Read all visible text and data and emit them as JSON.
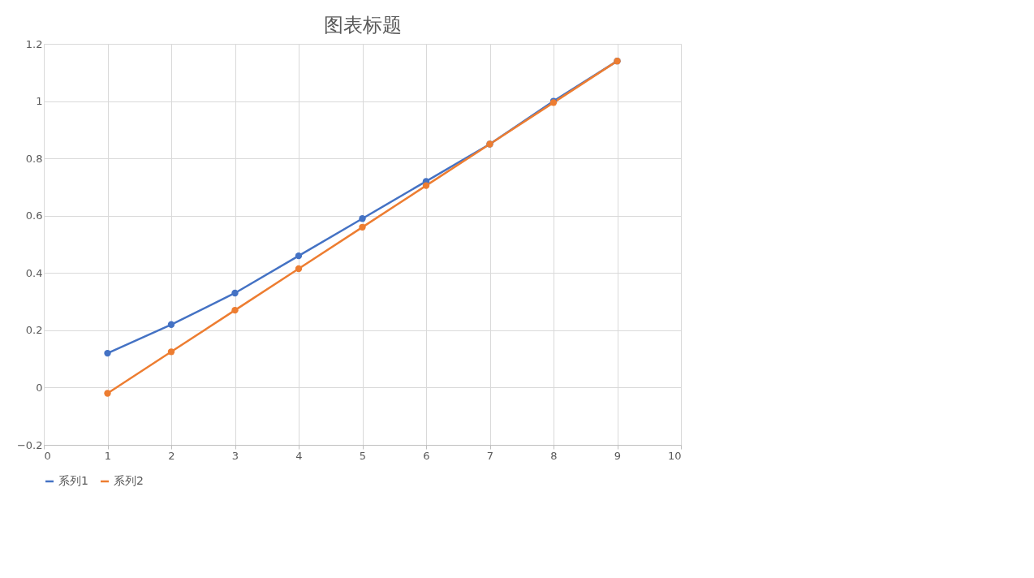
{
  "chart_data": {
    "type": "line",
    "title": "图表标题",
    "x": [
      1,
      2,
      3,
      4,
      5,
      6,
      7,
      8,
      9
    ],
    "series": [
      {
        "name": "系列1",
        "color": "#4472c4",
        "values": [
          0.12,
          0.22,
          0.33,
          0.46,
          0.59,
          0.72,
          0.85,
          1,
          1.14
        ]
      },
      {
        "name": "系列2",
        "color": "#ed7d31",
        "values": [
          -0.02,
          0.125,
          0.27,
          0.415,
          0.56,
          0.705,
          0.85,
          0.995,
          1.14
        ]
      }
    ],
    "xlim": [
      0,
      10
    ],
    "xticks": [
      0,
      1,
      2,
      3,
      4,
      5,
      6,
      7,
      8,
      9,
      10
    ],
    "ylim": [
      -0.2,
      1.2
    ],
    "yticks": [
      -0.2,
      0,
      0.2,
      0.4,
      0.6,
      0.8,
      1,
      1.2
    ],
    "grid": true,
    "legend": "bottom",
    "marker": "circle",
    "line_style": "solid"
  }
}
